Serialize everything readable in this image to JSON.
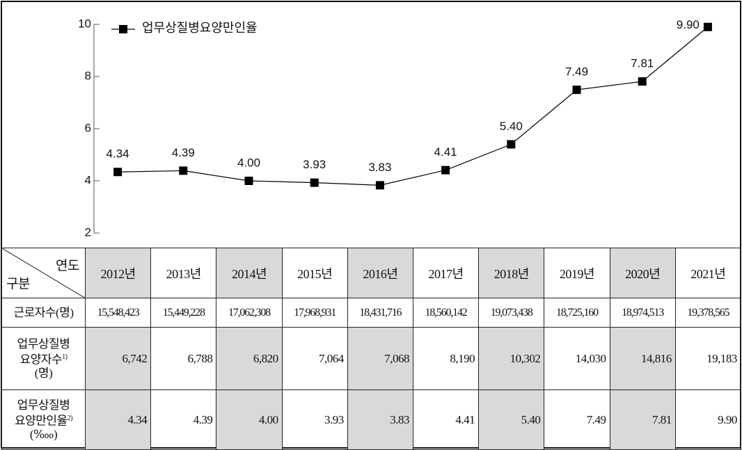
{
  "chart_data": {
    "type": "line",
    "categories": [
      "2012년",
      "2013년",
      "2014년",
      "2015년",
      "2016년",
      "2017년",
      "2018년",
      "2019년",
      "2020년",
      "2021년"
    ],
    "series": [
      {
        "name": "업무상질병요양만인율",
        "color": "#000000",
        "values": [
          4.34,
          4.39,
          4.0,
          3.93,
          3.83,
          4.41,
          5.4,
          7.49,
          7.81,
          9.9
        ],
        "value_labels": [
          "4.34",
          "4.39",
          "4.00",
          "3.93",
          "3.83",
          "4.41",
          "5.40",
          "7.49",
          "7.81",
          "9.90"
        ]
      }
    ],
    "ylim": [
      2,
      10
    ],
    "yticks": [
      2,
      4,
      6,
      8,
      10
    ],
    "legend": "upper left"
  },
  "table": {
    "corner": {
      "top": "연도",
      "bottom": "구분"
    },
    "rows": [
      {
        "label": [
          "근로자수(명)"
        ],
        "cells": [
          "15,548,423",
          "15,449,228",
          "17,062,308",
          "17,968,931",
          "18,431,716",
          "18,560,142",
          "19,073,438",
          "18,725,160",
          "18,974,513",
          "19,378,565"
        ]
      },
      {
        "label": [
          "업무상질병",
          "요양자수",
          "(명)"
        ],
        "note": "1)",
        "cells": [
          "6,742",
          "6,788",
          "6,820",
          "7,064",
          "7,068",
          "8,190",
          "10,302",
          "14,030",
          "14,816",
          "19,183"
        ]
      },
      {
        "label": [
          "업무상질병",
          "요양만인율",
          "(‱)"
        ],
        "note": "2)",
        "cells": [
          "4.34",
          "4.39",
          "4.00",
          "3.93",
          "3.83",
          "4.41",
          "5.40",
          "7.49",
          "7.81",
          "9.90"
        ]
      }
    ]
  }
}
